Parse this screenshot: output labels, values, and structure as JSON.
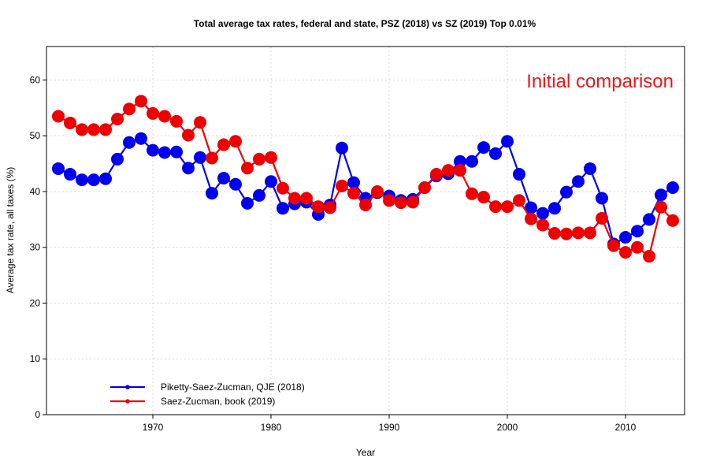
{
  "chart_data": {
    "type": "line",
    "title": "Total average tax rates, federal and state, PSZ (2018) vs SZ (2019) Top 0.01%",
    "xlabel": "Year",
    "ylabel": "Average tax rate, all taxes (%)",
    "annotation": "Initial comparison",
    "annotation_color": "#e41a1c",
    "xlim": [
      1961,
      2015
    ],
    "ylim": [
      0,
      66
    ],
    "x_ticks": [
      1970,
      1980,
      1990,
      2000,
      2010
    ],
    "y_ticks": [
      0,
      10,
      20,
      30,
      40,
      50,
      60
    ],
    "grid": true,
    "legend_position": "bottom-left",
    "x": [
      1962,
      1963,
      1964,
      1965,
      1966,
      1967,
      1968,
      1969,
      1970,
      1971,
      1972,
      1973,
      1974,
      1975,
      1976,
      1977,
      1978,
      1979,
      1980,
      1981,
      1982,
      1983,
      1984,
      1985,
      1986,
      1987,
      1988,
      1989,
      1990,
      1991,
      1992,
      1993,
      1994,
      1995,
      1996,
      1997,
      1998,
      1999,
      2000,
      2001,
      2002,
      2003,
      2004,
      2005,
      2006,
      2007,
      2008,
      2009,
      2010,
      2011,
      2012,
      2013,
      2014
    ],
    "series": [
      {
        "name": "Piketty-Saez-Zucman, QJE (2018)",
        "color": "#0000ee",
        "values": [
          44.1,
          43.1,
          42.1,
          42.1,
          42.3,
          45.8,
          48.8,
          49.5,
          47.4,
          47.0,
          47.1,
          44.2,
          46.1,
          39.7,
          42.4,
          41.3,
          37.9,
          39.3,
          41.8,
          37.0,
          37.8,
          38.1,
          35.9,
          37.6,
          47.8,
          41.6,
          38.8,
          39.8,
          39.2,
          38.4,
          38.6,
          40.7,
          42.8,
          43.2,
          45.4,
          45.4,
          47.9,
          46.8,
          49.0,
          43.1,
          37.1,
          36.1,
          37.0,
          39.9,
          41.8,
          44.1,
          38.8,
          30.6,
          31.8,
          32.9,
          35.0,
          39.4,
          40.7
        ]
      },
      {
        "name": "Saez-Zucman, book (2019)",
        "color": "#ee0000",
        "values": [
          53.5,
          52.3,
          51.1,
          51.1,
          51.1,
          53.0,
          54.8,
          56.2,
          54.0,
          53.5,
          52.6,
          50.1,
          52.4,
          46.0,
          48.4,
          49.0,
          44.2,
          45.8,
          46.1,
          40.6,
          38.8,
          38.8,
          37.3,
          37.1,
          41.0,
          39.7,
          37.6,
          40.0,
          38.4,
          38.0,
          38.1,
          40.7,
          43.1,
          43.8,
          43.8,
          39.6,
          39.0,
          37.3,
          37.3,
          38.4,
          35.1,
          34.0,
          32.5,
          32.4,
          32.6,
          32.6,
          35.2,
          30.3,
          29.1,
          30.0,
          28.4,
          37.2,
          34.8
        ]
      }
    ]
  }
}
